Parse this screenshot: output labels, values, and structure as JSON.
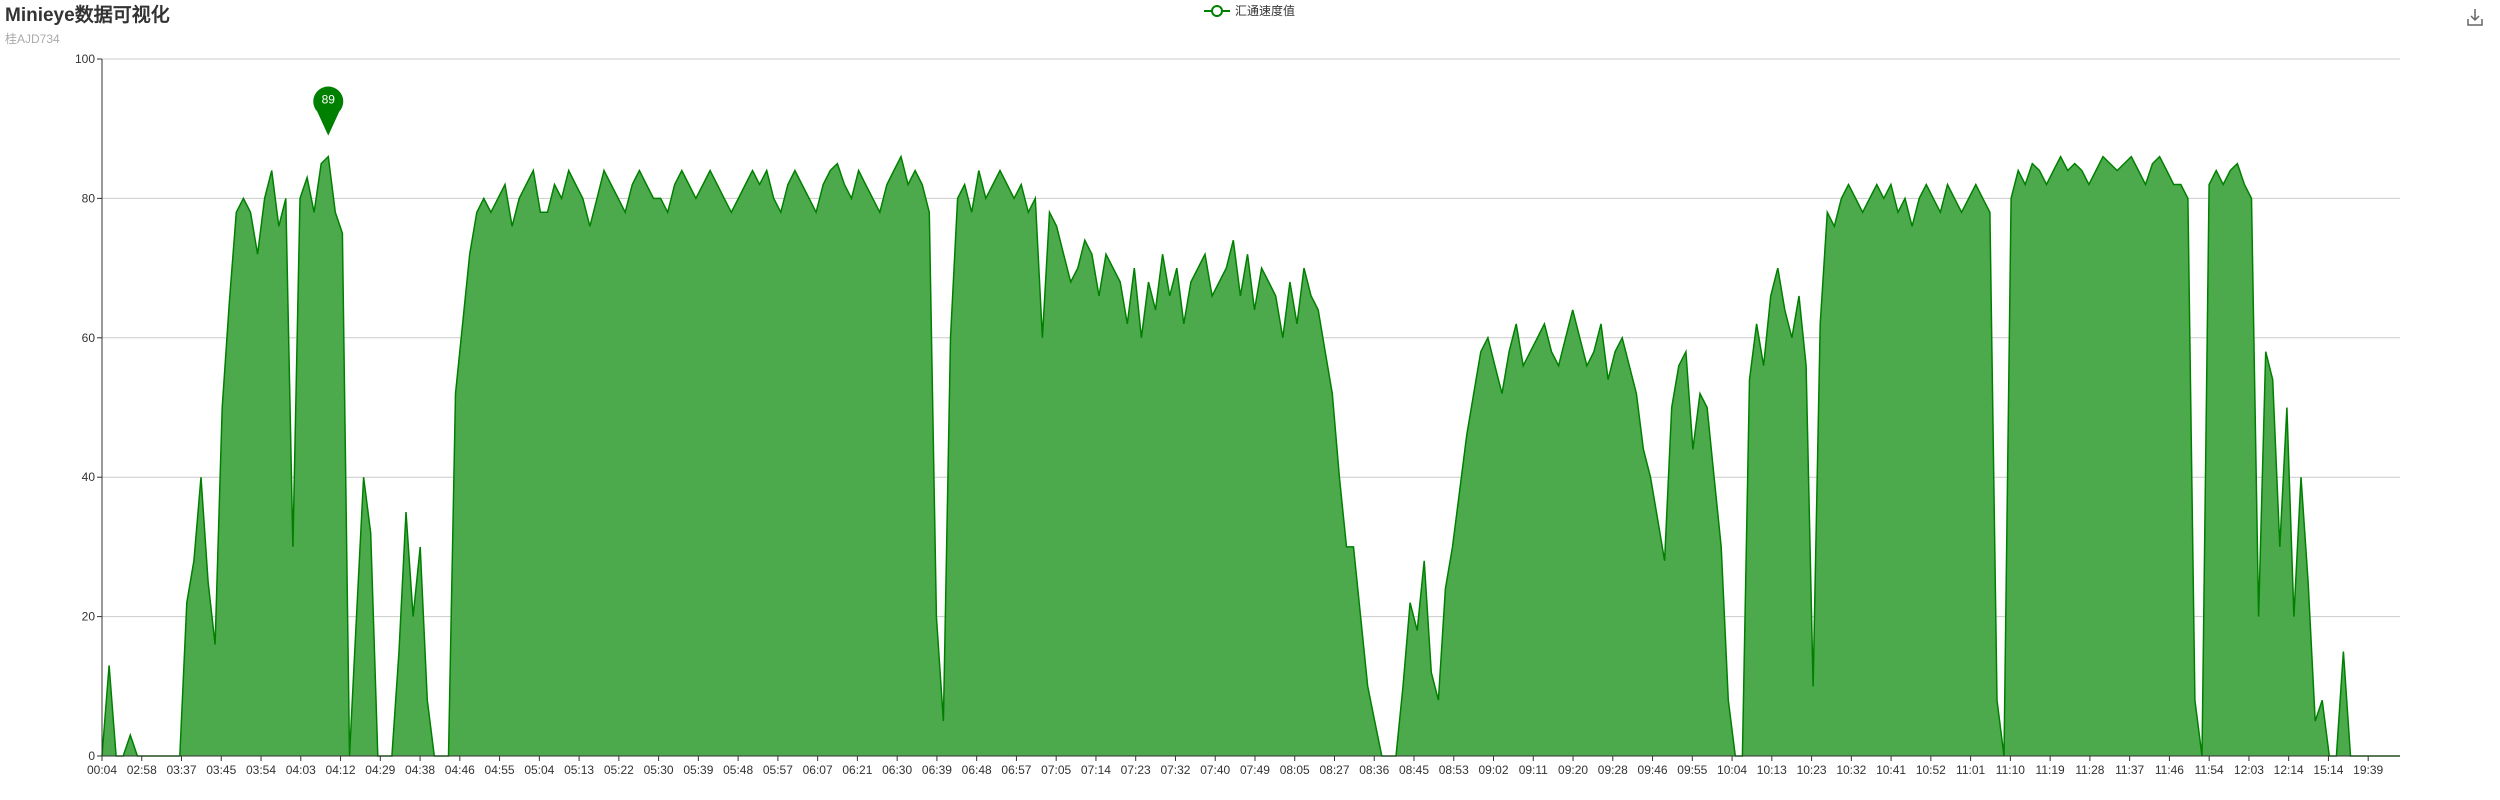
{
  "title": "Minieye数据可视化",
  "subtitle": "桂AJD734",
  "legend": {
    "label": "汇通速度值",
    "icon": "line-circle-icon"
  },
  "toolbar": {
    "download_icon": "download-icon"
  },
  "colors": {
    "series": "#008000",
    "area": "#4caa4c",
    "grid": "#cccccc",
    "axis": "#333333"
  },
  "chart_data": {
    "type": "area",
    "title": "Minieye数据可视化",
    "subtitle": "桂AJD734",
    "xlabel": "",
    "ylabel": "",
    "ylim": [
      0,
      100
    ],
    "yticks": [
      0,
      20,
      40,
      60,
      80,
      100
    ],
    "grid": true,
    "legend_position": "top-center",
    "x_labels": [
      "00:04",
      "02:58",
      "03:37",
      "03:45",
      "03:54",
      "04:03",
      "04:12",
      "04:29",
      "04:38",
      "04:46",
      "04:55",
      "05:04",
      "05:13",
      "05:22",
      "05:30",
      "05:39",
      "05:48",
      "05:57",
      "06:07",
      "06:21",
      "06:30",
      "06:39",
      "06:48",
      "06:57",
      "07:05",
      "07:14",
      "07:23",
      "07:32",
      "07:40",
      "07:49",
      "08:05",
      "08:27",
      "08:36",
      "08:45",
      "08:53",
      "09:02",
      "09:11",
      "09:20",
      "09:28",
      "09:46",
      "09:55",
      "10:04",
      "10:13",
      "10:23",
      "10:32",
      "10:41",
      "10:52",
      "11:01",
      "11:10",
      "11:19",
      "11:28",
      "11:37",
      "11:46",
      "11:54",
      "12:03",
      "12:14",
      "15:14",
      "19:39"
    ],
    "series": [
      {
        "name": "汇通速度值",
        "values": [
          0,
          13,
          0,
          0,
          3,
          0,
          0,
          0,
          0,
          0,
          0,
          0,
          22,
          28,
          40,
          25,
          16,
          50,
          65,
          78,
          80,
          78,
          72,
          80,
          84,
          76,
          80,
          30,
          80,
          83,
          78,
          85,
          86,
          78,
          75,
          0,
          20,
          40,
          32,
          0,
          0,
          0,
          15,
          35,
          20,
          30,
          8,
          0,
          0,
          0,
          52,
          62,
          72,
          78,
          80,
          78,
          80,
          82,
          76,
          80,
          82,
          84,
          78,
          78,
          82,
          80,
          84,
          82,
          80,
          76,
          80,
          84,
          82,
          80,
          78,
          82,
          84,
          82,
          80,
          80,
          78,
          82,
          84,
          82,
          80,
          82,
          84,
          82,
          80,
          78,
          80,
          82,
          84,
          82,
          84,
          80,
          78,
          82,
          84,
          82,
          80,
          78,
          82,
          84,
          85,
          82,
          80,
          84,
          82,
          80,
          78,
          82,
          84,
          86,
          82,
          84,
          82,
          78,
          20,
          5,
          60,
          80,
          82,
          78,
          84,
          80,
          82,
          84,
          82,
          80,
          82,
          78,
          80,
          60,
          78,
          76,
          72,
          68,
          70,
          74,
          72,
          66,
          72,
          70,
          68,
          62,
          70,
          60,
          68,
          64,
          72,
          66,
          70,
          62,
          68,
          70,
          72,
          66,
          68,
          70,
          74,
          66,
          72,
          64,
          70,
          68,
          66,
          60,
          68,
          62,
          70,
          66,
          64,
          58,
          52,
          40,
          30,
          30,
          20,
          10,
          5,
          0,
          0,
          0,
          10,
          22,
          18,
          28,
          12,
          8,
          24,
          30,
          38,
          46,
          52,
          58,
          60,
          56,
          52,
          58,
          62,
          56,
          58,
          60,
          62,
          58,
          56,
          60,
          64,
          60,
          56,
          58,
          62,
          54,
          58,
          60,
          56,
          52,
          44,
          40,
          34,
          28,
          50,
          56,
          58,
          44,
          52,
          50,
          40,
          30,
          8,
          0,
          0,
          54,
          62,
          56,
          66,
          70,
          64,
          60,
          66,
          56,
          10,
          62,
          78,
          76,
          80,
          82,
          80,
          78,
          80,
          82,
          80,
          82,
          78,
          80,
          76,
          80,
          82,
          80,
          78,
          82,
          80,
          78,
          80,
          82,
          80,
          78,
          8,
          0,
          80,
          84,
          82,
          85,
          84,
          82,
          84,
          86,
          84,
          85,
          84,
          82,
          84,
          86,
          85,
          84,
          85,
          86,
          84,
          82,
          85,
          86,
          84,
          82,
          82,
          80,
          8,
          0,
          82,
          84,
          82,
          84,
          85,
          82,
          80,
          20,
          58,
          54,
          30,
          50,
          20,
          40,
          25,
          5,
          8,
          0,
          0,
          15,
          0,
          0,
          0,
          0,
          0,
          0,
          0,
          0
        ]
      }
    ],
    "markpoint": {
      "label": "89",
      "value": 89,
      "type": "max"
    }
  }
}
